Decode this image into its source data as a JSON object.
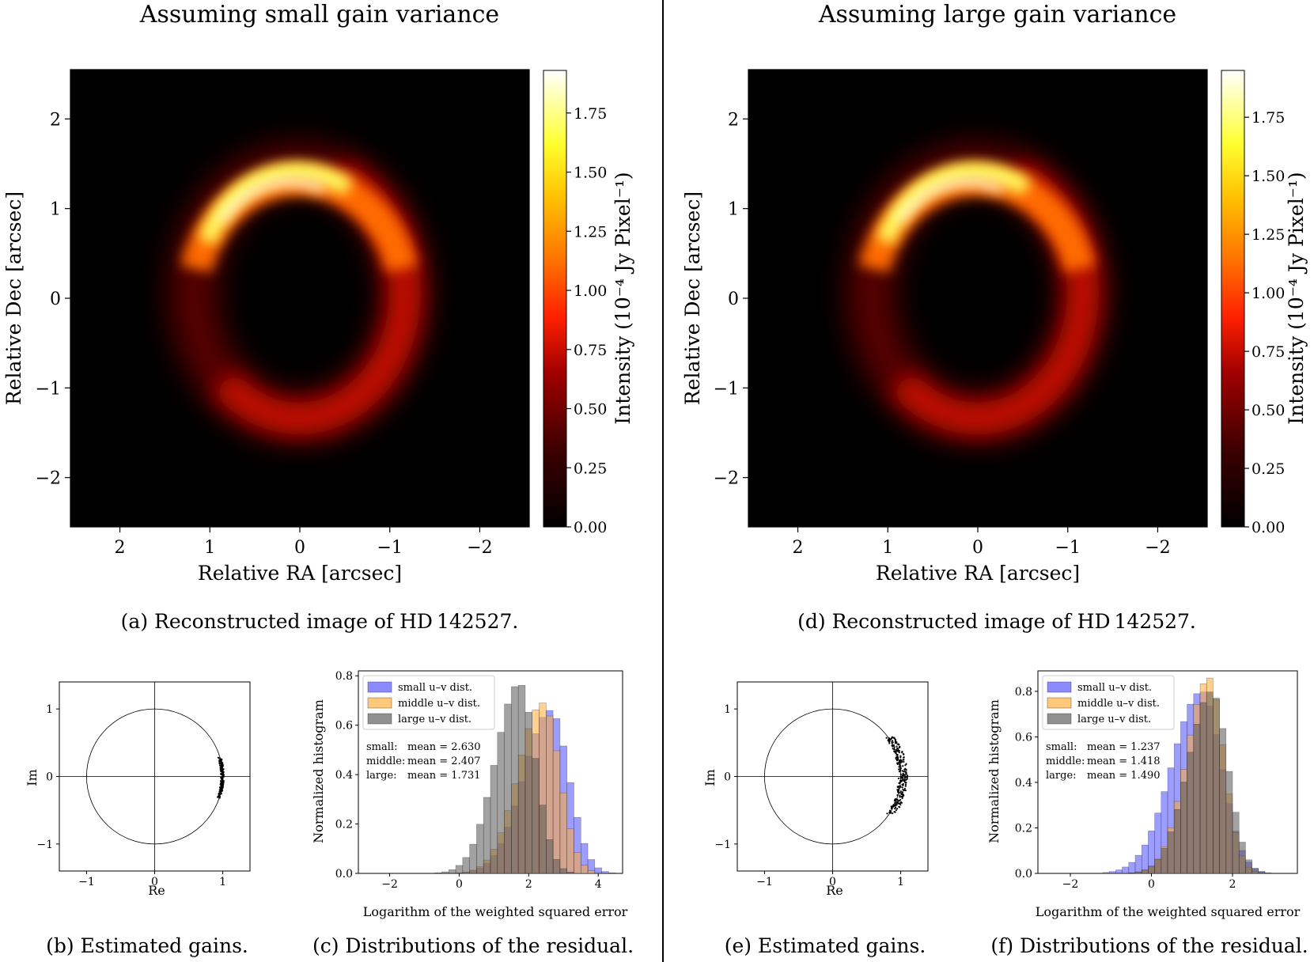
{
  "left_header": "Assuming small gain variance",
  "right_header": "Assuming large gain variance",
  "colors": {
    "divider": "#000000",
    "small": "#4d4dff",
    "middle": "#ffaa33",
    "large": "#555555",
    "image_bg": "#000000"
  },
  "chart_data": [
    {
      "id": "a",
      "type": "heatmap",
      "caption": "(a) Reconstructed image of HD 142527.",
      "xlabel": "Relative RA [arcsec]",
      "ylabel": "Relative Dec [arcsec]",
      "colorbar_label": "Intensity (10⁻⁴ Jy Pixel⁻¹)",
      "xlim": [
        2.55,
        -2.55
      ],
      "ylim": [
        -2.55,
        2.55
      ],
      "xticks": [
        2,
        1,
        0,
        -1,
        -2
      ],
      "xtick_labels": [
        "2",
        "1",
        "0",
        "−1",
        "−2"
      ],
      "yticks": [
        2,
        1,
        0,
        -1,
        -2
      ],
      "ytick_labels": [
        "2",
        "1",
        "0",
        "−1",
        "−2"
      ],
      "colorbar_range": [
        0,
        1.93
      ],
      "colorbar_ticks": [
        0.0,
        0.25,
        0.5,
        0.75,
        1.0,
        1.25,
        1.5,
        1.75
      ],
      "colorbar_tick_labels": [
        "0.00",
        "0.25",
        "0.50",
        "0.75",
        "1.00",
        "1.25",
        "1.50",
        "1.75"
      ],
      "colormap": "afmhot",
      "ring": {
        "center": [
          0.0,
          0.05
        ],
        "radius_ra": 1.05,
        "radius_dec": 1.3,
        "peak": 1.9,
        "brightest_side": "north-east"
      }
    },
    {
      "id": "d",
      "type": "heatmap",
      "caption": "(d) Reconstructed image of HD 142527.",
      "xlabel": "Relative RA [arcsec]",
      "ylabel": "Relative Dec [arcsec]",
      "colorbar_label": "Intensity (10⁻⁴ Jy Pixel⁻¹)",
      "xlim": [
        2.55,
        -2.55
      ],
      "ylim": [
        -2.55,
        2.55
      ],
      "xticks": [
        2,
        1,
        0,
        -1,
        -2
      ],
      "xtick_labels": [
        "2",
        "1",
        "0",
        "−1",
        "−2"
      ],
      "yticks": [
        2,
        1,
        0,
        -1,
        -2
      ],
      "ytick_labels": [
        "2",
        "1",
        "0",
        "−1",
        "−2"
      ],
      "colorbar_range": [
        0,
        1.95
      ],
      "colorbar_ticks": [
        0.0,
        0.25,
        0.5,
        0.75,
        1.0,
        1.25,
        1.5,
        1.75
      ],
      "colorbar_tick_labels": [
        "0.00",
        "0.25",
        "0.50",
        "0.75",
        "1.00",
        "1.25",
        "1.50",
        "1.75"
      ],
      "colormap": "afmhot",
      "ring": {
        "center": [
          0.0,
          0.05
        ],
        "radius_ra": 1.05,
        "radius_dec": 1.3,
        "peak": 1.92,
        "brightest_side": "north-east"
      }
    },
    {
      "id": "b",
      "type": "scatter",
      "caption": "(b) Estimated gains.",
      "xlabel": "Re",
      "ylabel": "Im",
      "xlim": [
        -1.4,
        1.4
      ],
      "ylim": [
        -1.4,
        1.4
      ],
      "xticks": [
        -1,
        0,
        1
      ],
      "xtick_labels": [
        "−1",
        "0",
        "1"
      ],
      "yticks": [
        1,
        0,
        -1
      ],
      "ytick_labels": [
        "1",
        "0",
        "−1"
      ],
      "unit_circle": true,
      "points_cluster": {
        "re_range": [
          0.94,
          1.04
        ],
        "im_range": [
          -0.32,
          0.28
        ]
      }
    },
    {
      "id": "c",
      "type": "bar",
      "caption": "(c) Distributions of the residual.",
      "xlabel": "Logarithm of the weighted squared error",
      "ylabel": "Normalized histogram",
      "xlim": [
        -2.9,
        4.7
      ],
      "ylim": [
        0,
        0.82
      ],
      "xticks": [
        -2,
        0,
        2,
        4
      ],
      "xtick_labels": [
        "−2",
        "0",
        "2",
        "4"
      ],
      "yticks": [
        0.0,
        0.2,
        0.4,
        0.6,
        0.8
      ],
      "ytick_labels": [
        "0.0",
        "0.2",
        "0.4",
        "0.6",
        "0.8"
      ],
      "legend_position": "top-left",
      "bin_width": 0.2,
      "series": [
        {
          "name": "small u–v dist.",
          "mean_label": "small:",
          "mean_text": "mean = 2.630",
          "mean": 2.63,
          "sd": 0.62,
          "peak": 0.66
        },
        {
          "name": "middle u–v dist.",
          "mean_label": "middle:",
          "mean_text": "mean = 2.407",
          "mean": 2.407,
          "sd": 0.57,
          "peak": 0.69
        },
        {
          "name": "large u–v dist.",
          "mean_label": "large:",
          "mean_text": "mean = 1.731",
          "mean": 1.731,
          "sd": 0.55,
          "peak": 0.77
        }
      ]
    },
    {
      "id": "e",
      "type": "scatter",
      "caption": "(e) Estimated gains.",
      "xlabel": "Re",
      "ylabel": "Im",
      "xlim": [
        -1.4,
        1.4
      ],
      "ylim": [
        -1.4,
        1.4
      ],
      "xticks": [
        -1,
        0,
        1
      ],
      "xtick_labels": [
        "−1",
        "0",
        "1"
      ],
      "yticks": [
        1,
        0,
        -1
      ],
      "ytick_labels": [
        "1",
        "0",
        "−1"
      ],
      "unit_circle": true,
      "points_cluster": {
        "re_range": [
          0.72,
          1.25
        ],
        "im_range": [
          -0.55,
          0.6
        ]
      }
    },
    {
      "id": "f",
      "type": "bar",
      "caption": "(f) Distributions of the residual.",
      "xlabel": "Logarithm of the weighted squared error",
      "ylabel": "Normalized histogram",
      "xlim": [
        -2.8,
        3.6
      ],
      "ylim": [
        0,
        0.89
      ],
      "xticks": [
        -2,
        0,
        2
      ],
      "xtick_labels": [
        "−2",
        "0",
        "2"
      ],
      "yticks": [
        0.0,
        0.2,
        0.4,
        0.6,
        0.8
      ],
      "ytick_labels": [
        "0.0",
        "0.2",
        "0.4",
        "0.6",
        "0.8"
      ],
      "legend_position": "top-left",
      "bin_width": 0.16,
      "series": [
        {
          "name": "small u–v dist.",
          "mean_label": "small:",
          "mean_text": "mean = 1.237",
          "mean": 1.237,
          "sd": 0.58,
          "peak": 0.8
        },
        {
          "name": "middle u–v dist.",
          "mean_label": "middle:",
          "mean_text": "mean = 1.418",
          "mean": 1.418,
          "sd": 0.44,
          "peak": 0.86
        },
        {
          "name": "large u–v dist.",
          "mean_label": "large:",
          "mean_text": "mean = 1.490",
          "mean": 1.49,
          "sd": 0.47,
          "peak": 0.8
        }
      ]
    }
  ]
}
